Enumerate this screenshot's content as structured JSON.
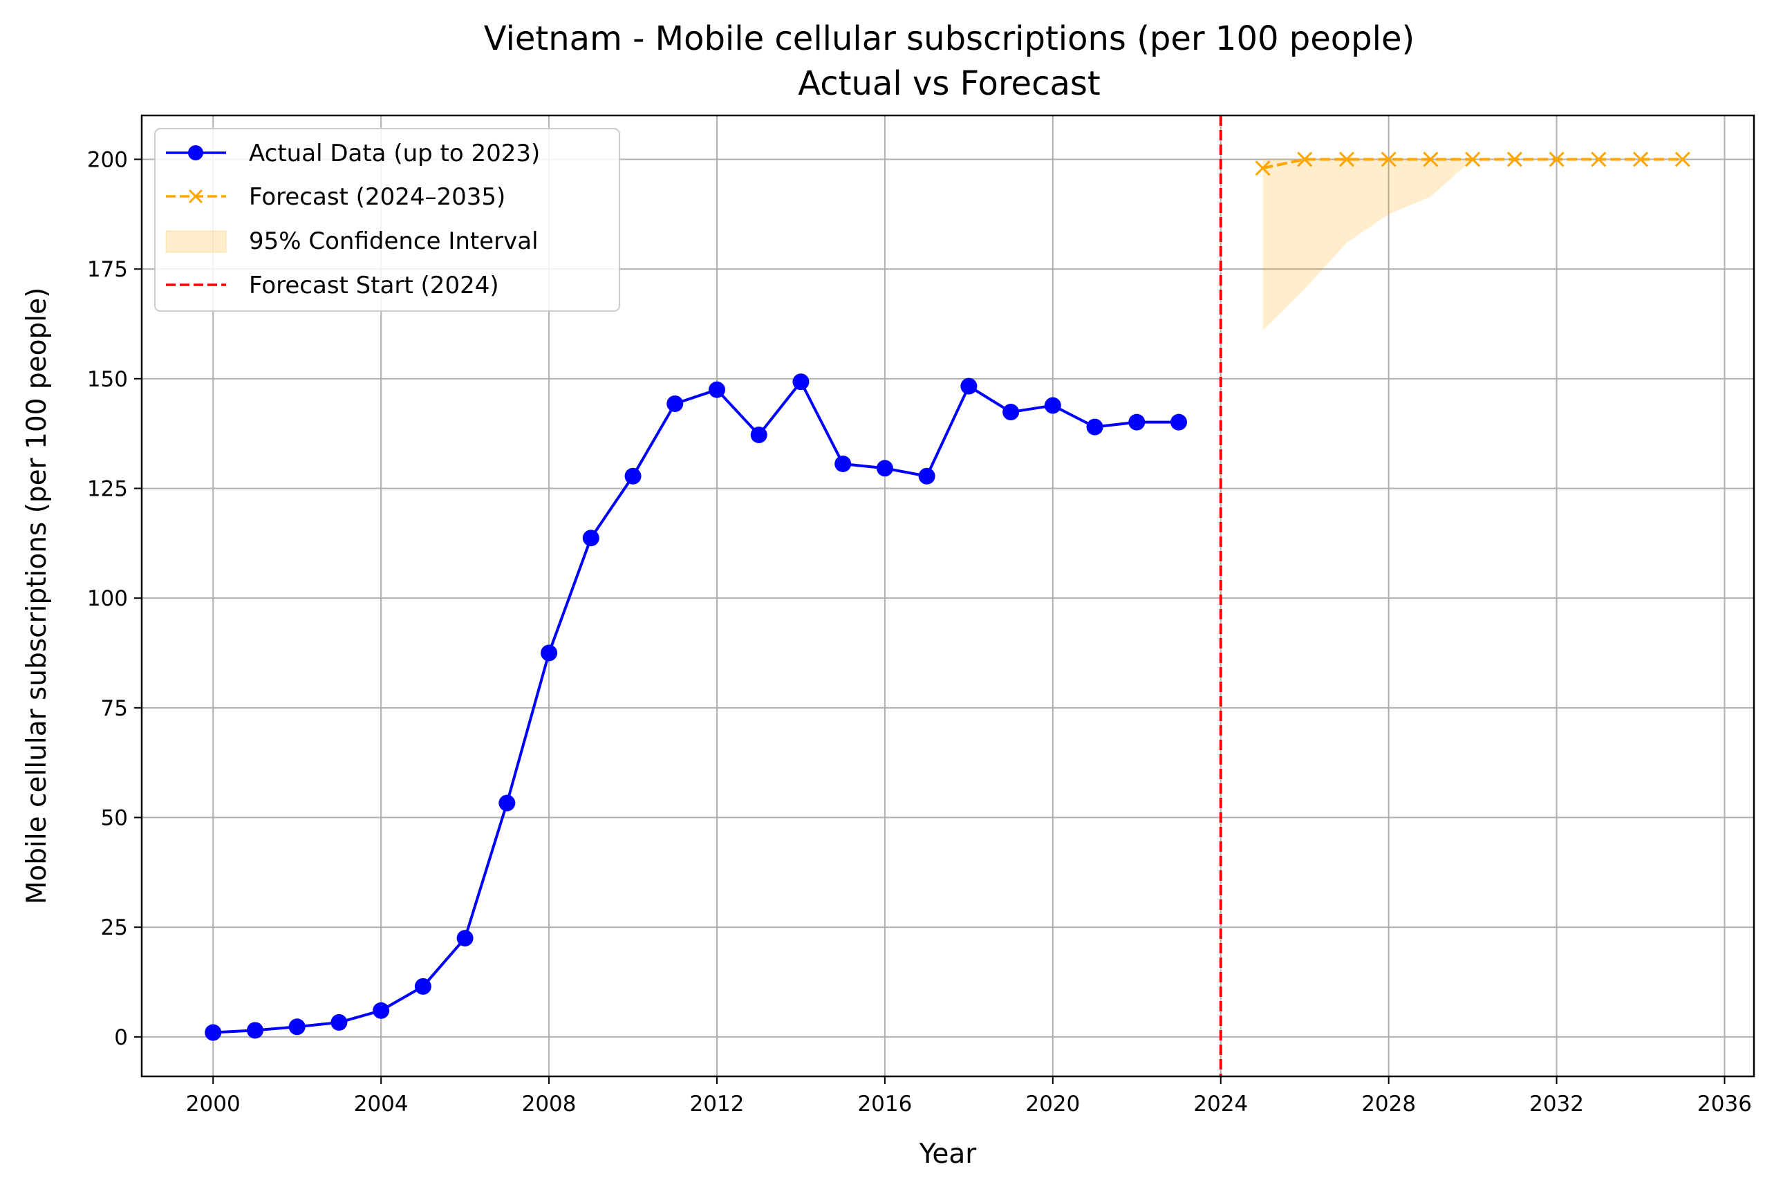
{
  "chart_data": {
    "type": "line",
    "title": "Vietnam - Mobile cellular subscriptions (per 100 people)",
    "subtitle": "Actual vs Forecast",
    "xlabel": "Year",
    "ylabel": "Mobile cellular subscriptions (per 100 people)",
    "xlim": [
      1998.3,
      2036.7
    ],
    "ylim": [
      -9,
      210
    ],
    "xticks": [
      2000,
      2004,
      2008,
      2012,
      2016,
      2020,
      2024,
      2028,
      2032,
      2036
    ],
    "yticks": [
      0,
      25,
      50,
      75,
      100,
      125,
      150,
      175,
      200
    ],
    "grid": true,
    "legend_position": "top-left",
    "colors": {
      "actual": "#0000ff",
      "forecast": "#ffa500",
      "ci_fill": "#ffa500",
      "forecast_start": "#ff0000",
      "grid": "#b0b0b0"
    },
    "series": [
      {
        "name": "Actual Data (up to 2023)",
        "style": "solid-line-circle-markers",
        "x": [
          2000,
          2001,
          2002,
          2003,
          2004,
          2005,
          2006,
          2007,
          2008,
          2009,
          2010,
          2011,
          2012,
          2013,
          2014,
          2015,
          2016,
          2017,
          2018,
          2019,
          2020,
          2021,
          2022,
          2023
        ],
        "y": [
          1,
          1.5,
          2.3,
          3.3,
          6,
          11.5,
          22.5,
          53.3,
          87.5,
          113.7,
          127.8,
          144.3,
          147.5,
          137.2,
          149.3,
          130.6,
          129.6,
          127.8,
          148.3,
          142.4,
          143.9,
          139,
          140.1,
          140.1
        ]
      },
      {
        "name": "Forecast (2024–2035)",
        "style": "dashed-line-x-markers",
        "x": [
          2025,
          2026,
          2027,
          2028,
          2029,
          2030,
          2031,
          2032,
          2033,
          2034,
          2035
        ],
        "y": [
          198,
          200,
          200,
          200,
          200,
          200,
          200,
          200,
          200,
          200,
          200
        ]
      },
      {
        "name": "95% Confidence Interval",
        "style": "shaded-band",
        "x": [
          2025,
          2026,
          2027,
          2028,
          2029,
          2030,
          2031,
          2032,
          2033,
          2034,
          2035
        ],
        "lower": [
          161,
          170.5,
          181,
          187.5,
          191.5,
          200,
          200,
          200,
          200,
          200,
          200
        ],
        "upper": [
          200,
          200,
          200,
          200,
          200,
          200,
          200,
          200,
          200,
          200,
          200
        ]
      },
      {
        "name": "Forecast Start (2024)",
        "style": "vertical-dashed-line",
        "x": 2024
      }
    ]
  }
}
